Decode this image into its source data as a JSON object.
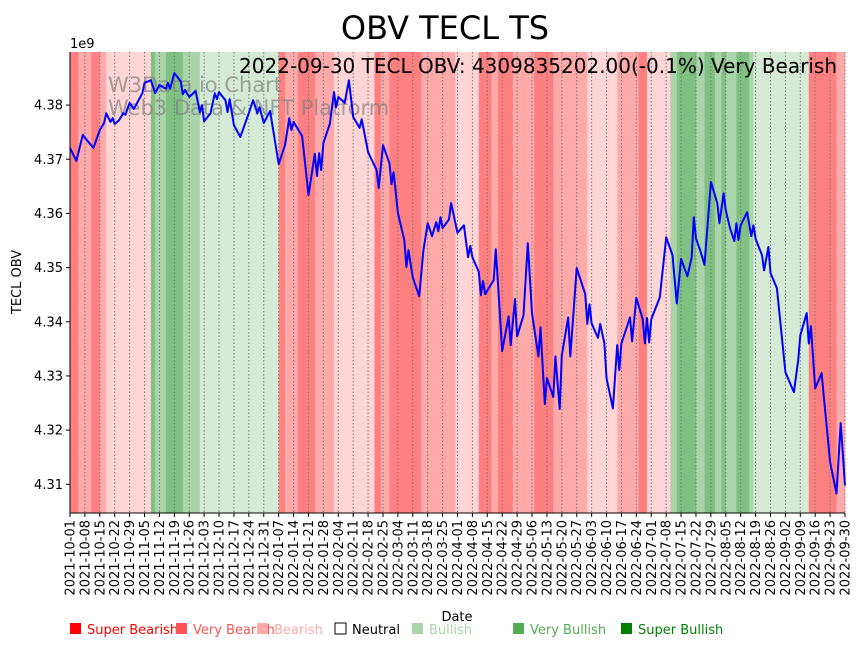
{
  "chart_data": {
    "type": "line",
    "title": "OBV TECL TS",
    "annotation": "2022-09-30 TECL OBV: 4309835202.00(-0.1%) Very Bearish",
    "watermark": [
      "W3Data.io Chart",
      "Web3 Data & NFT Platform"
    ],
    "xlabel": "Date",
    "ylabel": "TECL OBV",
    "y_scale_label": "1e9",
    "x_origin": "2021-10-01",
    "x_unit": "days since x_origin",
    "xlim": [
      0,
      364
    ],
    "ylim": [
      4.3047,
      4.3898
    ],
    "y_ticks": [
      "4.31",
      "4.32",
      "4.33",
      "4.34",
      "4.35",
      "4.36",
      "4.37",
      "4.38"
    ],
    "y_tick_values": [
      4.31,
      4.32,
      4.33,
      4.34,
      4.35,
      4.36,
      4.37,
      4.38
    ],
    "x_ticks": [
      "2021-10-01",
      "2021-10-08",
      "2021-10-15",
      "2021-10-22",
      "2021-10-29",
      "2021-11-05",
      "2021-11-12",
      "2021-11-19",
      "2021-11-26",
      "2021-12-03",
      "2021-12-10",
      "2021-12-17",
      "2021-12-24",
      "2021-12-31",
      "2022-01-07",
      "2022-01-14",
      "2022-01-21",
      "2022-01-28",
      "2022-02-04",
      "2022-02-11",
      "2022-02-18",
      "2022-02-25",
      "2022-03-04",
      "2022-03-11",
      "2022-03-18",
      "2022-03-25",
      "2022-04-01",
      "2022-04-08",
      "2022-04-15",
      "2022-04-22",
      "2022-04-29",
      "2022-05-06",
      "2022-05-13",
      "2022-05-20",
      "2022-05-27",
      "2022-06-03",
      "2022-06-10",
      "2022-06-17",
      "2022-06-24",
      "2022-07-01",
      "2022-07-08",
      "2022-07-15",
      "2022-07-22",
      "2022-07-29",
      "2022-08-05",
      "2022-08-12",
      "2022-08-19",
      "2022-08-26",
      "2022-09-02",
      "2022-09-09",
      "2022-09-16",
      "2022-09-23",
      "2022-09-30"
    ],
    "grid": "vertical dotted at x ticks",
    "series": [
      {
        "name": "OBV (x1e9)",
        "color": "#0000ff",
        "points": [
          [
            0,
            4.3721
          ],
          [
            3,
            4.3697
          ],
          [
            6,
            4.3745
          ],
          [
            8,
            4.3735
          ],
          [
            11,
            4.3721
          ],
          [
            14,
            4.3754
          ],
          [
            16,
            4.3767
          ],
          [
            17,
            4.3785
          ],
          [
            19,
            4.3769
          ],
          [
            20,
            4.3776
          ],
          [
            21,
            4.3765
          ],
          [
            23,
            4.3772
          ],
          [
            25,
            4.3785
          ],
          [
            26,
            4.3782
          ],
          [
            28,
            4.3804
          ],
          [
            30,
            4.3793
          ],
          [
            34,
            4.3822
          ],
          [
            35,
            4.3841
          ],
          [
            38,
            4.3846
          ],
          [
            40,
            4.3822
          ],
          [
            42,
            4.3837
          ],
          [
            45,
            4.383
          ],
          [
            46,
            4.3841
          ],
          [
            47,
            4.383
          ],
          [
            49,
            4.3859
          ],
          [
            52,
            4.3844
          ],
          [
            53,
            4.382
          ],
          [
            54,
            4.3828
          ],
          [
            56,
            4.3815
          ],
          [
            59,
            4.3826
          ],
          [
            61,
            4.3787
          ],
          [
            62,
            4.38
          ],
          [
            63,
            4.377
          ],
          [
            66,
            4.3785
          ],
          [
            68,
            4.3822
          ],
          [
            69,
            4.3811
          ],
          [
            70,
            4.3824
          ],
          [
            73,
            4.3809
          ],
          [
            74,
            4.3787
          ],
          [
            75,
            4.3811
          ],
          [
            77,
            4.3763
          ],
          [
            80,
            4.3741
          ],
          [
            84,
            4.3785
          ],
          [
            86,
            4.3809
          ],
          [
            88,
            4.3785
          ],
          [
            89,
            4.3796
          ],
          [
            91,
            4.3767
          ],
          [
            94,
            4.3789
          ],
          [
            98,
            4.3691
          ],
          [
            101,
            4.3726
          ],
          [
            103,
            4.3776
          ],
          [
            104,
            4.3754
          ],
          [
            105,
            4.3769
          ],
          [
            109,
            4.3743
          ],
          [
            112,
            4.3634
          ],
          [
            115,
            4.371
          ],
          [
            116,
            4.3669
          ],
          [
            117,
            4.3711
          ],
          [
            118,
            4.368
          ],
          [
            119,
            4.373
          ],
          [
            122,
            4.3765
          ],
          [
            124,
            4.3824
          ],
          [
            125,
            4.3796
          ],
          [
            126,
            4.3815
          ],
          [
            129,
            4.3804
          ],
          [
            131,
            4.3846
          ],
          [
            133,
            4.3778
          ],
          [
            136,
            4.3758
          ],
          [
            137,
            4.3774
          ],
          [
            140,
            4.3713
          ],
          [
            144,
            4.368
          ],
          [
            145,
            4.3647
          ],
          [
            147,
            4.3726
          ],
          [
            150,
            4.3693
          ],
          [
            151,
            4.3654
          ],
          [
            152,
            4.3676
          ],
          [
            154,
            4.3601
          ],
          [
            157,
            4.3551
          ],
          [
            158,
            4.3501
          ],
          [
            159,
            4.3532
          ],
          [
            161,
            4.3482
          ],
          [
            164,
            4.3447
          ],
          [
            166,
            4.3532
          ],
          [
            168,
            4.3582
          ],
          [
            170,
            4.3558
          ],
          [
            172,
            4.3584
          ],
          [
            173,
            4.3567
          ],
          [
            174,
            4.3593
          ],
          [
            175,
            4.3573
          ],
          [
            178,
            4.3589
          ],
          [
            179,
            4.3619
          ],
          [
            182,
            4.3564
          ],
          [
            185,
            4.3578
          ],
          [
            187,
            4.3519
          ],
          [
            188,
            4.354
          ],
          [
            189,
            4.3519
          ],
          [
            192,
            4.3492
          ],
          [
            193,
            4.3449
          ],
          [
            194,
            4.3475
          ],
          [
            195,
            4.3451
          ],
          [
            199,
            4.3477
          ],
          [
            200,
            4.3534
          ],
          [
            203,
            4.3346
          ],
          [
            206,
            4.341
          ],
          [
            207,
            4.3357
          ],
          [
            209,
            4.3442
          ],
          [
            210,
            4.3373
          ],
          [
            213,
            4.3412
          ],
          [
            215,
            4.3545
          ],
          [
            217,
            4.3416
          ],
          [
            220,
            4.3336
          ],
          [
            221,
            4.339
          ],
          [
            223,
            4.3248
          ],
          [
            224,
            4.3296
          ],
          [
            227,
            4.3261
          ],
          [
            228,
            4.3336
          ],
          [
            230,
            4.3239
          ],
          [
            231,
            4.3338
          ],
          [
            234,
            4.3408
          ],
          [
            235,
            4.3336
          ],
          [
            238,
            4.3499
          ],
          [
            242,
            4.3451
          ],
          [
            243,
            4.3396
          ],
          [
            244,
            4.3432
          ],
          [
            245,
            4.3397
          ],
          [
            248,
            4.337
          ],
          [
            249,
            4.3396
          ],
          [
            251,
            4.336
          ],
          [
            252,
            4.3296
          ],
          [
            255,
            4.324
          ],
          [
            257,
            4.3357
          ],
          [
            258,
            4.3311
          ],
          [
            259,
            4.336
          ],
          [
            263,
            4.3408
          ],
          [
            264,
            4.3364
          ],
          [
            266,
            4.3444
          ],
          [
            269,
            4.3405
          ],
          [
            270,
            4.336
          ],
          [
            271,
            4.3407
          ],
          [
            272,
            4.3362
          ],
          [
            273,
            4.3405
          ],
          [
            277,
            4.3445
          ],
          [
            280,
            4.3556
          ],
          [
            283,
            4.3523
          ],
          [
            285,
            4.3434
          ],
          [
            287,
            4.3516
          ],
          [
            290,
            4.3484
          ],
          [
            292,
            4.3519
          ],
          [
            293,
            4.3593
          ],
          [
            294,
            4.3554
          ],
          [
            296,
            4.3532
          ],
          [
            298,
            4.3505
          ],
          [
            301,
            4.3658
          ],
          [
            304,
            4.3619
          ],
          [
            305,
            4.3582
          ],
          [
            307,
            4.3637
          ],
          [
            308,
            4.3606
          ],
          [
            310,
            4.3573
          ],
          [
            312,
            4.3549
          ],
          [
            313,
            4.3582
          ],
          [
            314,
            4.3551
          ],
          [
            315,
            4.3578
          ],
          [
            318,
            4.3602
          ],
          [
            320,
            4.3558
          ],
          [
            321,
            4.3578
          ],
          [
            322,
            4.3553
          ],
          [
            325,
            4.3523
          ],
          [
            326,
            4.3495
          ],
          [
            328,
            4.3538
          ],
          [
            329,
            4.349
          ],
          [
            332,
            4.3462
          ],
          [
            336,
            4.3307
          ],
          [
            340,
            4.327
          ],
          [
            342,
            4.3329
          ],
          [
            343,
            4.3375
          ],
          [
            346,
            4.3416
          ],
          [
            347,
            4.336
          ],
          [
            348,
            4.3392
          ],
          [
            350,
            4.3277
          ],
          [
            353,
            4.3305
          ],
          [
            357,
            4.3141
          ],
          [
            360,
            4.3083
          ],
          [
            362,
            4.3213
          ],
          [
            364,
            4.3098
          ]
        ]
      }
    ],
    "sentiment_bands": [
      [
        0,
        4,
        "super_bearish"
      ],
      [
        4,
        10,
        "very_bearish"
      ],
      [
        10,
        14,
        "super_bearish"
      ],
      [
        14,
        17,
        "very_bearish"
      ],
      [
        17,
        38,
        "bearish"
      ],
      [
        38,
        40,
        "super_bullish"
      ],
      [
        40,
        45,
        "very_bullish"
      ],
      [
        45,
        53,
        "super_bullish"
      ],
      [
        53,
        61,
        "very_bullish"
      ],
      [
        61,
        98,
        "bullish"
      ],
      [
        98,
        101,
        "super_bearish"
      ],
      [
        101,
        107,
        "very_bearish"
      ],
      [
        107,
        115,
        "super_bearish"
      ],
      [
        115,
        124,
        "very_bearish"
      ],
      [
        124,
        143,
        "bearish"
      ],
      [
        143,
        146,
        "super_bearish"
      ],
      [
        146,
        150,
        "very_bearish"
      ],
      [
        150,
        165,
        "super_bearish"
      ],
      [
        165,
        181,
        "very_bearish"
      ],
      [
        181,
        192,
        "bearish"
      ],
      [
        192,
        198,
        "super_bearish"
      ],
      [
        198,
        201,
        "very_bearish"
      ],
      [
        201,
        208,
        "super_bearish"
      ],
      [
        208,
        218,
        "very_bearish"
      ],
      [
        218,
        227,
        "super_bearish"
      ],
      [
        227,
        243,
        "very_bearish"
      ],
      [
        243,
        257,
        "bearish"
      ],
      [
        257,
        267,
        "very_bearish"
      ],
      [
        267,
        271,
        "super_bearish"
      ],
      [
        271,
        282,
        "bearish"
      ],
      [
        282,
        285,
        "very_bullish"
      ],
      [
        285,
        294,
        "super_bullish"
      ],
      [
        294,
        298,
        "very_bullish"
      ],
      [
        298,
        303,
        "super_bullish"
      ],
      [
        303,
        306,
        "very_bullish"
      ],
      [
        306,
        308,
        "super_bullish"
      ],
      [
        308,
        313,
        "very_bullish"
      ],
      [
        313,
        319,
        "super_bullish"
      ],
      [
        319,
        321,
        "very_bullish"
      ],
      [
        321,
        347,
        "bullish"
      ],
      [
        347,
        360,
        "super_bearish"
      ],
      [
        360,
        364,
        "very_bearish"
      ]
    ],
    "band_colors": {
      "super_bearish": "#ff8080",
      "very_bearish": "#ffaaaa",
      "bearish": "#ffd5d5",
      "bullish": "#d5ead5",
      "very_bullish": "#aad5aa",
      "super_bullish": "#80c080"
    },
    "legend": {
      "placement": "bottom",
      "items": [
        {
          "key": "super_bearish",
          "label": "Super Bearish",
          "color": "#ff0000"
        },
        {
          "key": "very_bearish",
          "label": "Very Bearish",
          "color": "#ff5555"
        },
        {
          "key": "bearish",
          "label": "Bearish",
          "color": "#ffaaaa"
        },
        {
          "key": "neutral",
          "label": "Neutral",
          "color": "#000000"
        },
        {
          "key": "bullish",
          "label": "Bullish",
          "color": "#aad5aa"
        },
        {
          "key": "very_bullish",
          "label": "Very Bullish",
          "color": "#55aa55"
        },
        {
          "key": "super_bullish",
          "label": "Super Bullish",
          "color": "#008000"
        }
      ]
    }
  }
}
